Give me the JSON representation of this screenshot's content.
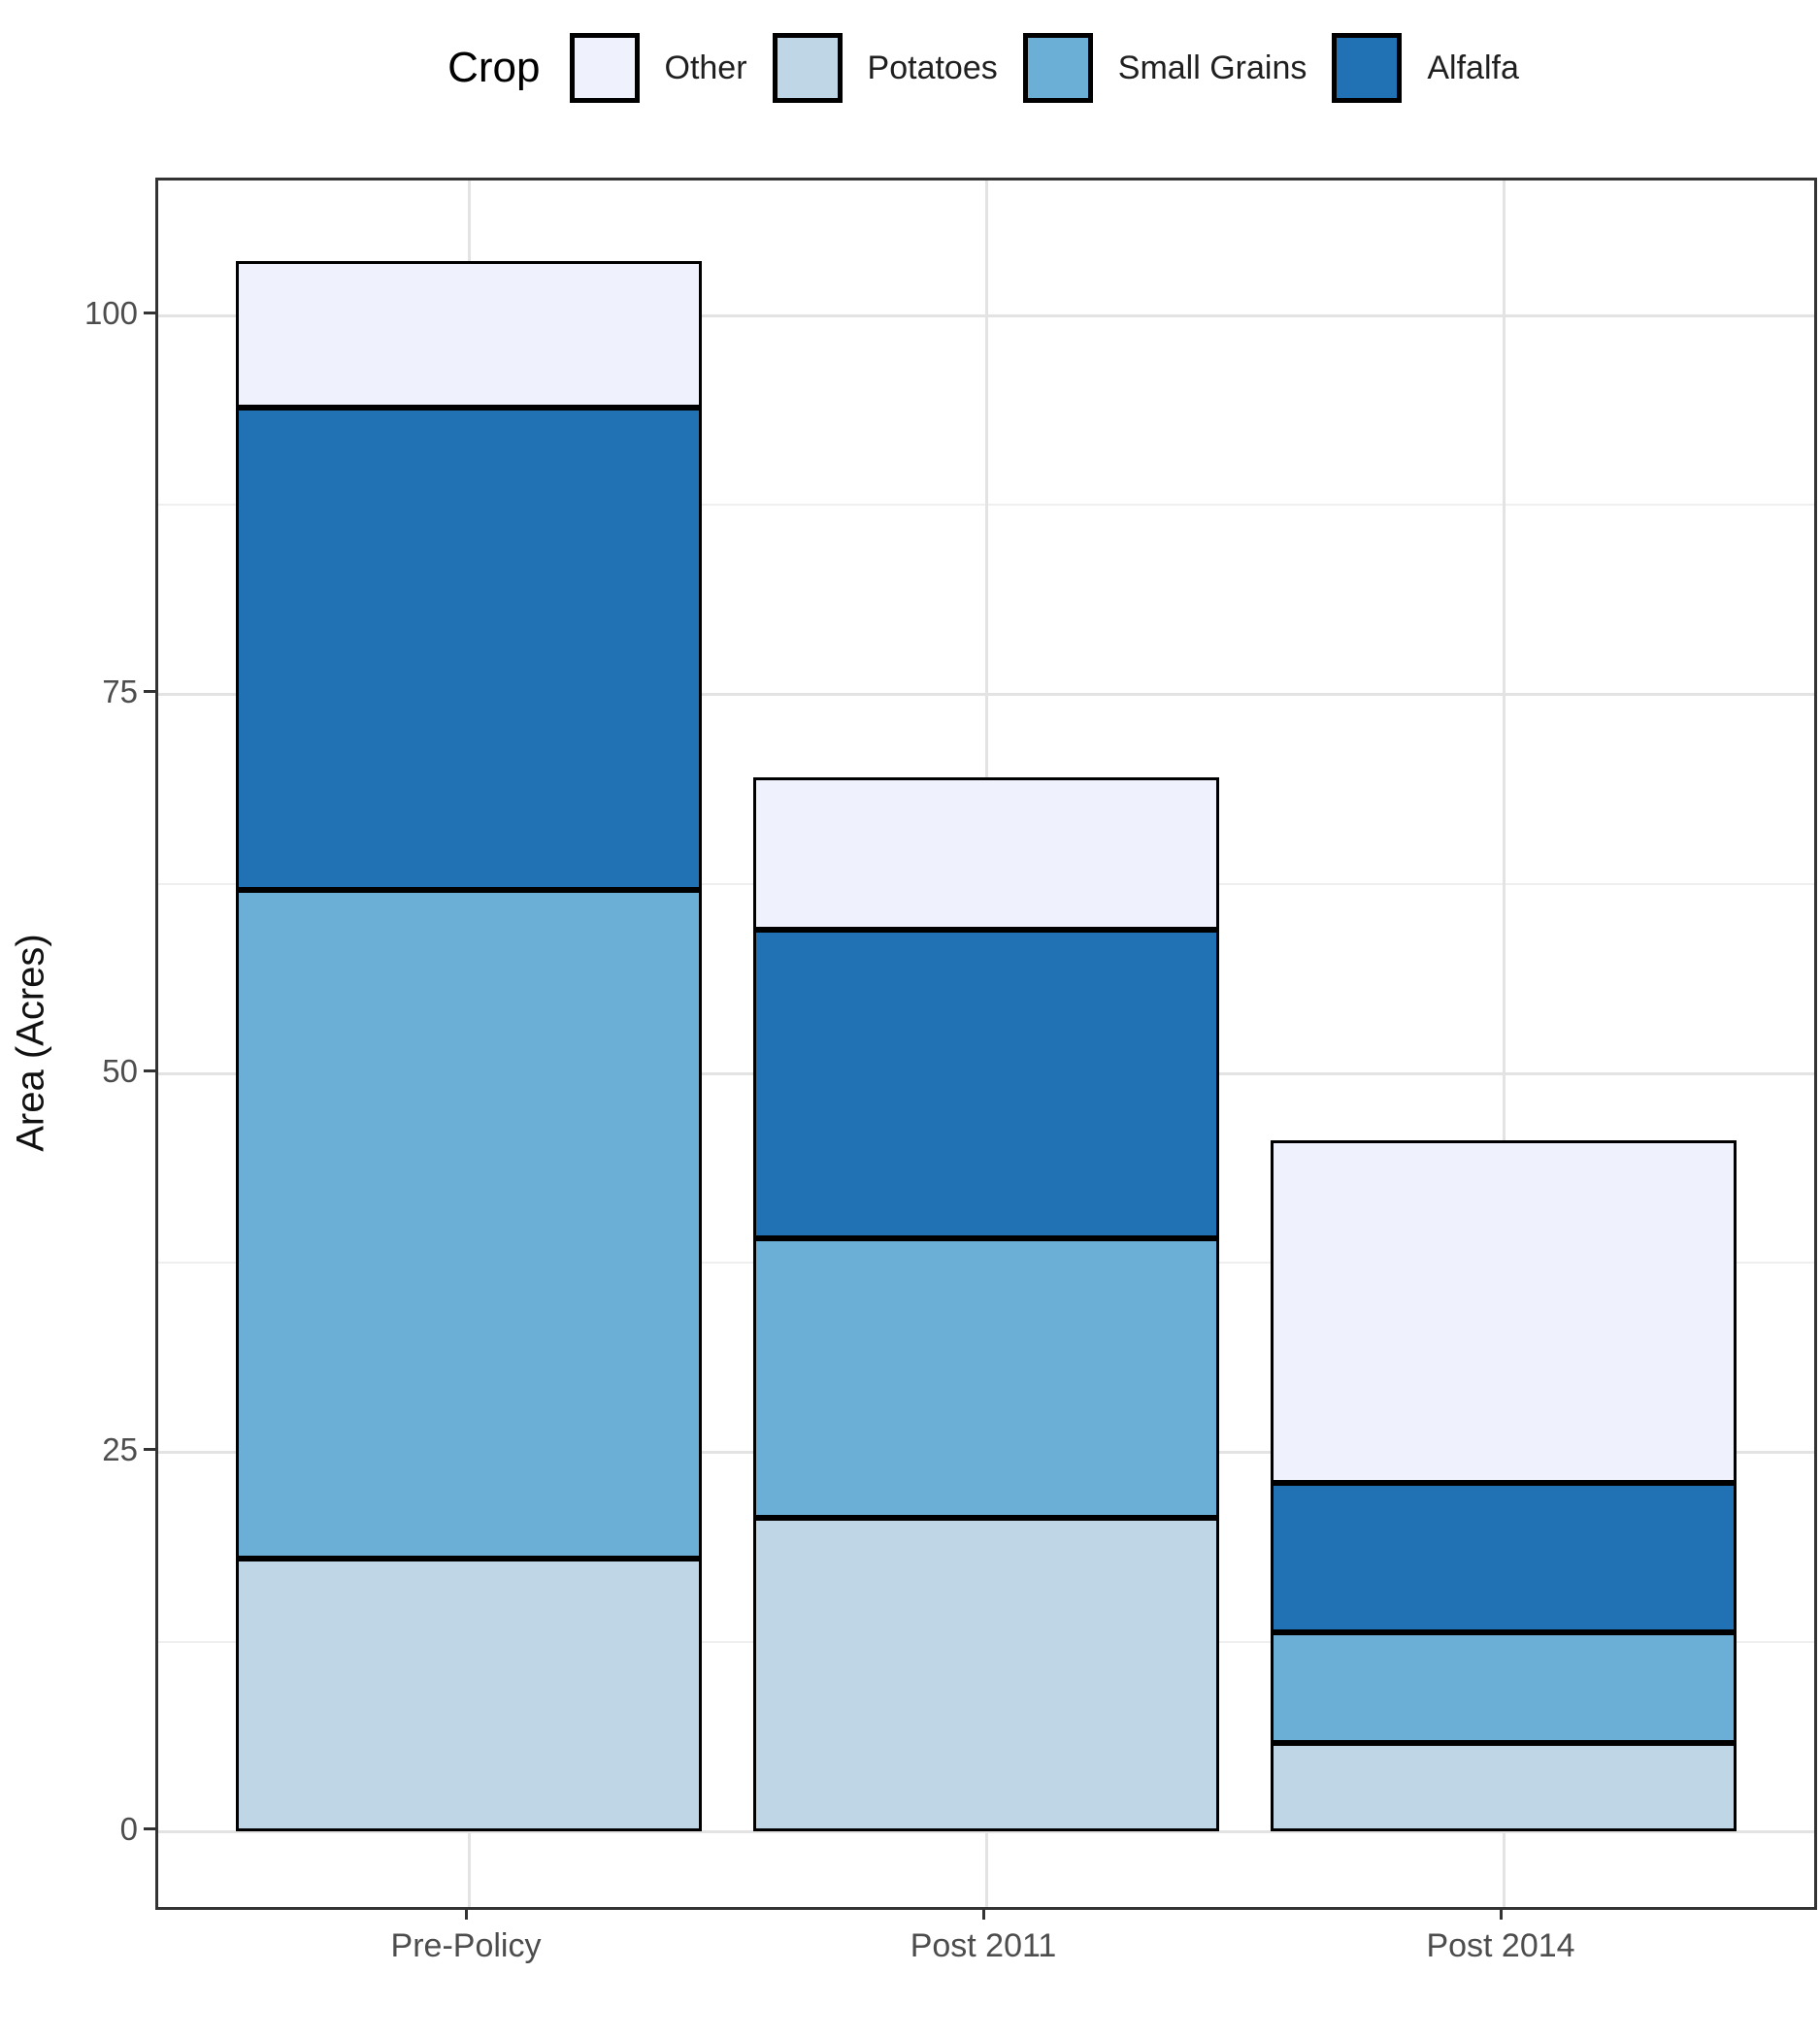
{
  "chart": {
    "legend": {
      "title": "Crop",
      "items": [
        {
          "label": "Other",
          "color": "#EFF2FC"
        },
        {
          "label": "Potatoes",
          "color": "#BFD6E6"
        },
        {
          "label": "Small Grains",
          "color": "#6BAED6"
        },
        {
          "label": "Alfalfa",
          "color": "#2171B5"
        }
      ]
    },
    "y_axis": {
      "title": "Area (Acres)",
      "tick_labels": [
        "0",
        "25",
        "50",
        "75",
        "100"
      ]
    },
    "x_axis": {
      "tick_labels": [
        "Pre-Policy",
        "Post 2011",
        "Post 2014"
      ]
    },
    "colors": {
      "bar_outline": "#000000",
      "panel_border": "#333333",
      "grid_major": "#e3e3e3",
      "grid_minor": "#efefef",
      "tick_text": "#4d4d4d"
    }
  },
  "chart_data": {
    "type": "bar",
    "stacked": true,
    "title": "",
    "xlabel": "",
    "ylabel": "Area (Acres)",
    "categories": [
      "Pre-Policy",
      "Post 2011",
      "Post 2014"
    ],
    "series": [
      {
        "name": "Potatoes",
        "color": "#BFD6E6",
        "values": [
          18.0,
          20.7,
          5.8
        ]
      },
      {
        "name": "Small Grains",
        "color": "#6BAED6",
        "values": [
          44.1,
          18.4,
          7.3
        ]
      },
      {
        "name": "Alfalfa",
        "color": "#2171B5",
        "values": [
          31.8,
          20.4,
          9.9
        ]
      },
      {
        "name": "Other",
        "color": "#EFF2FC",
        "values": [
          9.7,
          10.0,
          22.6
        ]
      }
    ],
    "stack_totals": [
      103.6,
      69.5,
      45.6
    ],
    "ylim": [
      -5,
      109
    ],
    "yticks": [
      0,
      25,
      50,
      75,
      100
    ],
    "yticks_minor": [
      12.5,
      37.5,
      62.5,
      87.5
    ],
    "grid": "horizontal major+minor, vertical major at category centers",
    "legend_position": "top",
    "legend_order": [
      "Other",
      "Potatoes",
      "Small Grains",
      "Alfalfa"
    ]
  }
}
